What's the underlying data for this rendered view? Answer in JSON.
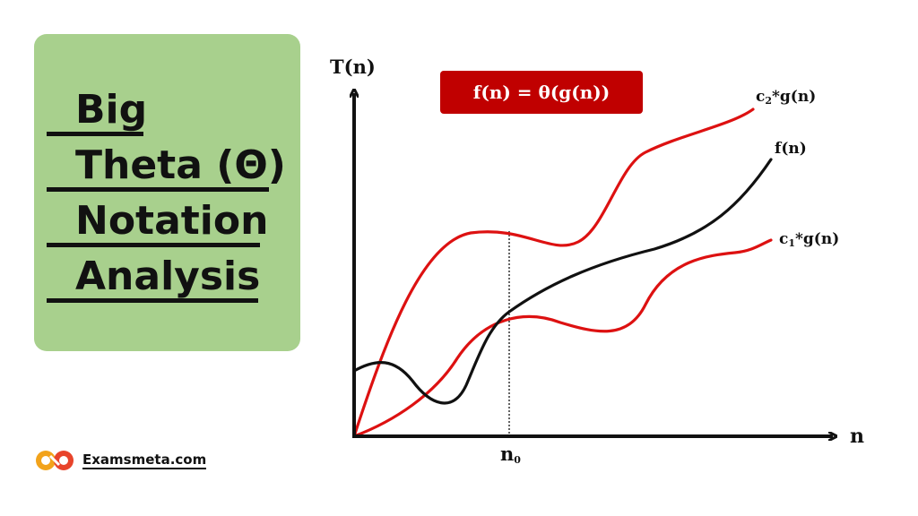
{
  "title_card": {
    "lines": [
      "Big",
      "Theta (Θ)",
      "Notation",
      "Analysis"
    ],
    "background": "#a8d08d"
  },
  "diagram": {
    "equation": "f(n) = θ(g(n))",
    "y_axis_label": "T(n)",
    "x_axis_label": "n",
    "n0_label": "n",
    "n0_sub": "0",
    "upper_curve_label": {
      "prefix": "c",
      "sub": "2",
      "suffix": "*g(n)"
    },
    "middle_curve_label": "f(n)",
    "lower_curve_label": {
      "prefix": "c",
      "sub": "1",
      "suffix": "*g(n)"
    },
    "colors": {
      "bound_curves": "#dd1111",
      "f_curve": "#111111",
      "equation_box": "#c00000"
    }
  },
  "brand": {
    "name": "Examsmeta.com",
    "logo_icon": "infinity-logo-icon",
    "logo_colors": [
      "#f2a31b",
      "#e8442b"
    ]
  }
}
